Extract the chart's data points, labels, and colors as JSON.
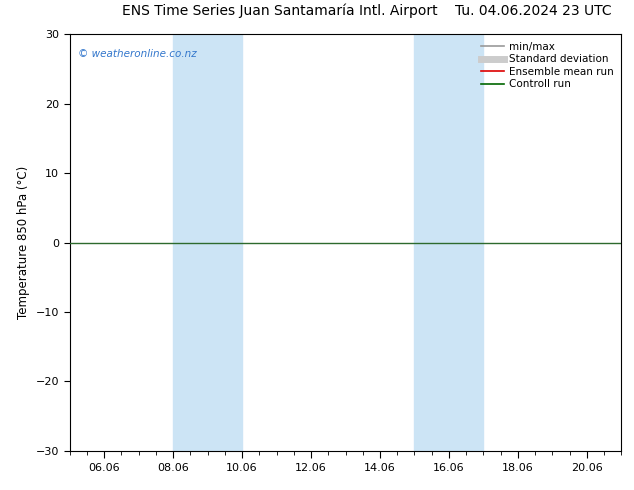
{
  "title_left": "ENS Time Series Juan Santamaría Intl. Airport",
  "title_right": "Tu. 04.06.2024 23 UTC",
  "ylabel": "Temperature 850 hPa (°C)",
  "watermark": "© weatheronline.co.nz",
  "ylim": [
    -30,
    30
  ],
  "yticks": [
    -30,
    -20,
    -10,
    0,
    10,
    20,
    30
  ],
  "xlim": [
    0,
    16
  ],
  "xtick_positions": [
    1,
    3,
    5,
    7,
    9,
    11,
    13,
    15
  ],
  "xtick_labels": [
    "06.06",
    "08.06",
    "10.06",
    "12.06",
    "14.06",
    "16.06",
    "18.06",
    "20.06"
  ],
  "shaded_bands": [
    {
      "x_start": 3,
      "x_end": 5
    },
    {
      "x_start": 10,
      "x_end": 12
    }
  ],
  "shade_color": "#cce4f5",
  "zero_line_color": "#2d6a2d",
  "background_color": "#ffffff",
  "plot_bg_color": "#ffffff",
  "legend_items": [
    {
      "label": "min/max",
      "color": "#999999",
      "lw": 1.2
    },
    {
      "label": "Standard deviation",
      "color": "#cccccc",
      "lw": 5
    },
    {
      "label": "Ensemble mean run",
      "color": "#dd0000",
      "lw": 1.2
    },
    {
      "label": "Controll run",
      "color": "#006600",
      "lw": 1.2
    }
  ],
  "watermark_color": "#3377cc",
  "title_fontsize": 10,
  "tick_fontsize": 8,
  "ylabel_fontsize": 8.5,
  "legend_fontsize": 7.5
}
